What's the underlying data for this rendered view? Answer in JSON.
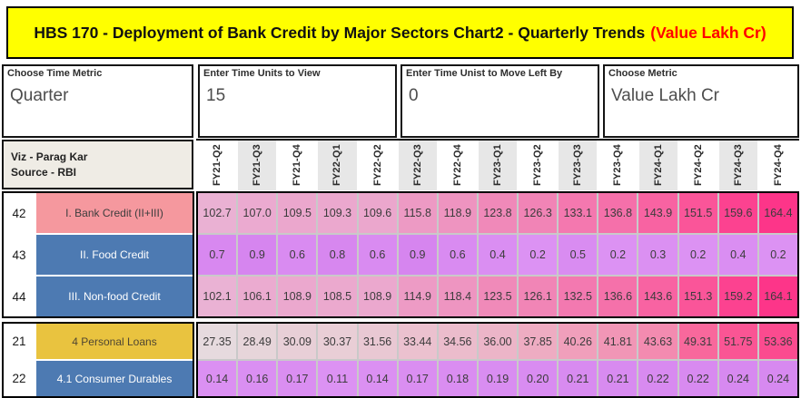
{
  "title": {
    "text": "HBS 170 - Deployment of Bank Credit by Major Sectors Chart2 - Quarterly Trends",
    "unit_suffix": "(Value Lakh Cr)"
  },
  "controls": [
    {
      "label": "Choose Time Metric",
      "value": "Quarter"
    },
    {
      "label": "Enter Time Units to View",
      "value": "15"
    },
    {
      "label": "Enter Time Unist to Move Left By",
      "value": "0"
    },
    {
      "label": "Choose Metric",
      "value": "Value Lakh Cr"
    }
  ],
  "viz_credit": {
    "line1": "Viz - Parag Kar",
    "line2": "Source - RBI"
  },
  "colors": {
    "title_bg": "#ffff00",
    "title_unit": "#ff0000",
    "pink_label": "#f5989e",
    "blue_label": "#4d7ab2",
    "gold_label": "#e9c33f"
  },
  "chart_data": {
    "type": "heatmap",
    "title": "HBS 170 - Deployment of Bank Credit by Major Sectors Chart2 - Quarterly Trends (Value Lakh Cr)",
    "columns": [
      "FY21-Q2",
      "FY21-Q3",
      "FY21-Q4",
      "FY22-Q1",
      "FY22-Q2",
      "FY22-Q3",
      "FY22-Q4",
      "FY23-Q1",
      "FY23-Q2",
      "FY23-Q3",
      "FY23-Q4",
      "FY24-Q1",
      "FY24-Q2",
      "FY24-Q3",
      "FY24-Q4"
    ],
    "groups": [
      {
        "rows": [
          {
            "num": "42",
            "label": "I. Bank Credit (II+III)",
            "label_bg": "#f5989e",
            "label_fg": "#3d3d3d",
            "values": [
              "102.7",
              "107.0",
              "109.5",
              "109.3",
              "109.6",
              "115.8",
              "118.9",
              "123.8",
              "126.3",
              "133.1",
              "136.8",
              "143.9",
              "151.5",
              "159.6",
              "164.4"
            ],
            "colors": [
              "#eab1d3",
              "#ebaad0",
              "#eba7cd",
              "#eba8ce",
              "#eba7cd",
              "#ed9ac4",
              "#ee94c0",
              "#f089b9",
              "#f184b6",
              "#f478af",
              "#f570aa",
              "#f863a2",
              "#fa5599",
              "#fc4290",
              "#fd3589"
            ]
          },
          {
            "num": "43",
            "label": "II. Food Credit",
            "label_bg": "#4d7ab2",
            "label_fg": "#ffffff",
            "values": [
              "0.7",
              "0.9",
              "0.6",
              "0.8",
              "0.6",
              "0.9",
              "0.6",
              "0.4",
              "0.2",
              "0.5",
              "0.2",
              "0.3",
              "0.2",
              "0.4",
              "0.2"
            ],
            "colors": [
              "#d888f0",
              "#d685ef",
              "#d98bf1",
              "#d787ef",
              "#d98bf1",
              "#d685ef",
              "#d98bf1",
              "#da8ef2",
              "#dc92f3",
              "#d98cf1",
              "#dc92f3",
              "#db90f2",
              "#dc92f3",
              "#da8ef2",
              "#dc92f3"
            ]
          },
          {
            "num": "44",
            "label": "III. Non-food Credit",
            "label_bg": "#4d7ab2",
            "label_fg": "#ffffff",
            "values": [
              "102.1",
              "106.1",
              "108.9",
              "108.5",
              "108.9",
              "114.9",
              "118.4",
              "123.5",
              "126.1",
              "132.5",
              "136.6",
              "143.6",
              "151.3",
              "159.2",
              "164.1"
            ],
            "colors": [
              "#eab2d4",
              "#ebabd0",
              "#eba8ce",
              "#eba9ce",
              "#eba8ce",
              "#ed9bc5",
              "#ee95c1",
              "#f08ab9",
              "#f185b6",
              "#f379b0",
              "#f571aa",
              "#f863a2",
              "#fa5599",
              "#fc4290",
              "#fd3589"
            ]
          }
        ]
      },
      {
        "rows": [
          {
            "num": "21",
            "label": "4 Personal Loans",
            "label_bg": "#e9c33f",
            "label_fg": "#4f4632",
            "values": [
              "27.35",
              "28.49",
              "30.09",
              "30.37",
              "31.56",
              "33.44",
              "34.56",
              "36.00",
              "37.85",
              "40.26",
              "41.81",
              "43.63",
              "49.31",
              "51.75",
              "53.36"
            ],
            "colors": [
              "#e6dade",
              "#e7d5da",
              "#e8cfd7",
              "#e9ced6",
              "#e9c8d3",
              "#ebc1cf",
              "#ebbccc",
              "#ecb5c8",
              "#eeacc2",
              "#f09fbb",
              "#f196b6",
              "#f38bb0",
              "#f8689c",
              "#fa5594",
              "#fb4b8f"
            ]
          },
          {
            "num": "22",
            "label": "4.1 Consumer Durables",
            "label_bg": "#4d7ab2",
            "label_fg": "#ffffff",
            "values": [
              "0.14",
              "0.16",
              "0.17",
              "0.11",
              "0.14",
              "0.17",
              "0.18",
              "0.19",
              "0.20",
              "0.21",
              "0.21",
              "0.22",
              "0.22",
              "0.24",
              "0.24"
            ],
            "colors": [
              "#db90f2",
              "#da8ff2",
              "#da8ef1",
              "#dc92f3",
              "#db90f2",
              "#da8ef1",
              "#da8df1",
              "#d98df1",
              "#d98cf1",
              "#d88bf0",
              "#d88bf0",
              "#d88af0",
              "#d88af0",
              "#d789f0",
              "#d789f0"
            ]
          }
        ]
      }
    ]
  }
}
